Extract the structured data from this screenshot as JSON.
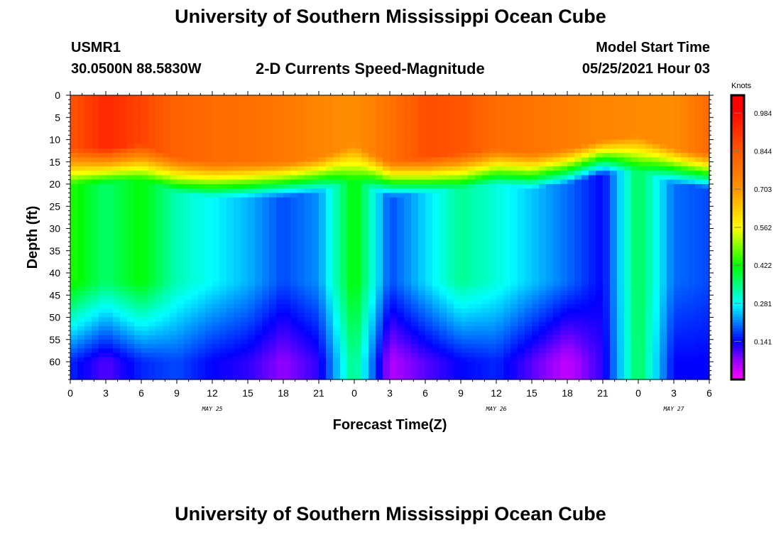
{
  "header": {
    "title_top": "University of Southern Mississippi Ocean Cube",
    "title_bottom": "University of Southern Mississippi Ocean Cube",
    "station_id": "USMR1",
    "coordinates": "30.0500N  88.5830W",
    "chart_title": "2-D Currents Speed-Magnitude",
    "model_start_label": "Model Start Time",
    "model_start_value": "05/25/2021 Hour 03"
  },
  "chart_data": {
    "type": "heatmap",
    "title": "2-D Currents Speed-Magnitude",
    "xlabel": "Forecast Time(Z)",
    "ylabel": "Depth (ft)",
    "x_ticks": [
      "0",
      "3",
      "6",
      "9",
      "12",
      "15",
      "18",
      "21",
      "0",
      "3",
      "6",
      "9",
      "12",
      "15",
      "18",
      "21",
      "0",
      "3",
      "6"
    ],
    "x_hours_range": [
      0,
      54
    ],
    "day_labels": [
      {
        "label": "MAY 25",
        "hour": 12
      },
      {
        "label": "MAY 26",
        "hour": 36
      },
      {
        "label": "MAY 27",
        "hour": 51
      }
    ],
    "y_ticks": [
      "0",
      "5",
      "10",
      "15",
      "20",
      "25",
      "30",
      "35",
      "40",
      "45",
      "50",
      "55",
      "60"
    ],
    "y_range": [
      0,
      64
    ],
    "colorbar": {
      "units": "Knots",
      "ticks": [
        "0.984",
        "0.844",
        "0.703",
        "0.562",
        "0.422",
        "0.281",
        "0.141"
      ],
      "range": [
        0,
        1.05
      ]
    },
    "profile_hours": [
      0,
      3,
      6,
      9,
      12,
      15,
      18,
      21,
      24,
      27,
      30,
      33,
      36,
      39,
      42,
      45,
      48,
      51,
      54
    ],
    "upper_speed": [
      0.85,
      0.93,
      0.88,
      0.82,
      0.8,
      0.79,
      0.77,
      0.74,
      0.72,
      0.78,
      0.86,
      0.85,
      0.8,
      0.78,
      0.76,
      0.74,
      0.73,
      0.72,
      0.8
    ],
    "thermocline_depth_ft": [
      12,
      12,
      11,
      14,
      15,
      15,
      15,
      14,
      11,
      15,
      14,
      13,
      12,
      13,
      12,
      10,
      9,
      12,
      13
    ],
    "mid_speed": [
      0.44,
      0.36,
      0.42,
      0.32,
      0.28,
      0.24,
      0.18,
      0.22,
      0.43,
      0.18,
      0.26,
      0.34,
      0.3,
      0.25,
      0.2,
      0.14,
      0.38,
      0.2,
      0.18
    ],
    "deep_speed": [
      0.16,
      0.1,
      0.16,
      0.18,
      0.14,
      0.12,
      0.07,
      0.12,
      0.36,
      0.05,
      0.1,
      0.14,
      0.16,
      0.1,
      0.04,
      0.12,
      0.38,
      0.14,
      0.14
    ]
  }
}
